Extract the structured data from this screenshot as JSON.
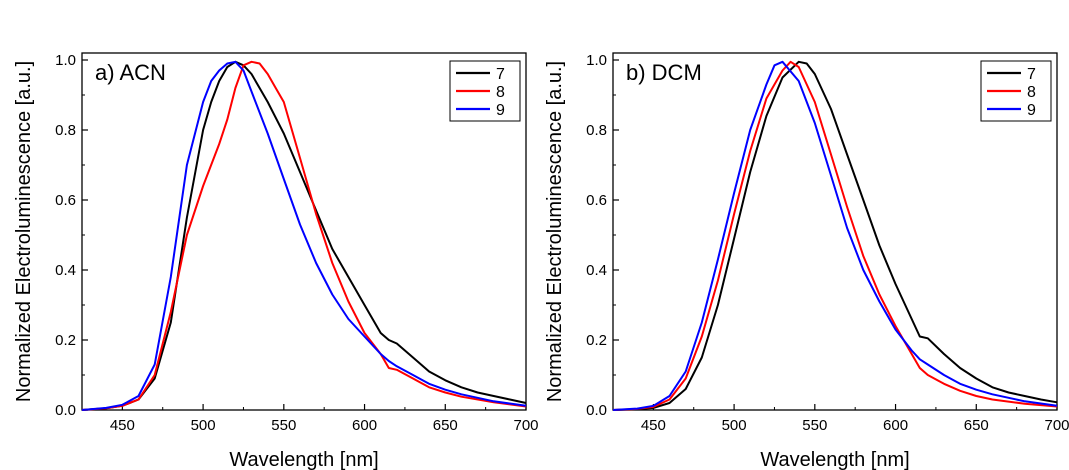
{
  "chart_data": [
    {
      "type": "line",
      "panel_label": "a) ACN",
      "xlabel": "Wavelength [nm]",
      "ylabel": "Normalized Electroluminescence [a.u.]",
      "xlim": [
        425,
        700
      ],
      "ylim": [
        0,
        1.02
      ],
      "xticks": [
        "450",
        "500",
        "550",
        "600",
        "650",
        "700"
      ],
      "yticks": [
        "0.0",
        "0.2",
        "0.4",
        "0.6",
        "0.8",
        "1.0"
      ],
      "grid": false,
      "legend_position": "top-right",
      "series": [
        {
          "name": "7",
          "color": "#000000",
          "x": [
            425,
            440,
            450,
            460,
            470,
            480,
            490,
            500,
            505,
            510,
            515,
            520,
            525,
            530,
            540,
            550,
            560,
            570,
            580,
            590,
            600,
            605,
            610,
            615,
            620,
            630,
            640,
            650,
            660,
            670,
            680,
            690,
            700
          ],
          "y": [
            0.0,
            0.005,
            0.012,
            0.03,
            0.09,
            0.25,
            0.55,
            0.8,
            0.88,
            0.94,
            0.98,
            0.995,
            0.985,
            0.96,
            0.88,
            0.79,
            0.68,
            0.57,
            0.46,
            0.38,
            0.3,
            0.26,
            0.22,
            0.2,
            0.19,
            0.15,
            0.11,
            0.085,
            0.065,
            0.05,
            0.04,
            0.03,
            0.02
          ]
        },
        {
          "name": "8",
          "color": "#ff0000",
          "x": [
            425,
            440,
            450,
            460,
            470,
            480,
            490,
            500,
            510,
            515,
            520,
            525,
            530,
            535,
            540,
            545,
            550,
            560,
            570,
            580,
            590,
            600,
            610,
            615,
            620,
            630,
            640,
            650,
            660,
            680,
            700
          ],
          "y": [
            0.0,
            0.005,
            0.012,
            0.03,
            0.1,
            0.28,
            0.5,
            0.64,
            0.76,
            0.83,
            0.92,
            0.985,
            0.995,
            0.99,
            0.96,
            0.92,
            0.88,
            0.72,
            0.56,
            0.42,
            0.31,
            0.22,
            0.16,
            0.12,
            0.115,
            0.09,
            0.065,
            0.05,
            0.038,
            0.022,
            0.01
          ]
        },
        {
          "name": "9",
          "color": "#0000ff",
          "x": [
            425,
            440,
            450,
            460,
            470,
            480,
            490,
            500,
            505,
            510,
            515,
            520,
            525,
            530,
            540,
            550,
            560,
            570,
            580,
            590,
            600,
            610,
            615,
            620,
            630,
            640,
            650,
            660,
            680,
            700
          ],
          "y": [
            0.0,
            0.006,
            0.015,
            0.04,
            0.13,
            0.38,
            0.7,
            0.88,
            0.94,
            0.97,
            0.99,
            0.995,
            0.97,
            0.91,
            0.79,
            0.66,
            0.53,
            0.42,
            0.33,
            0.26,
            0.21,
            0.16,
            0.14,
            0.125,
            0.1,
            0.075,
            0.058,
            0.045,
            0.025,
            0.012
          ]
        }
      ]
    },
    {
      "type": "line",
      "panel_label": "b) DCM",
      "xlabel": "Wavelength [nm]",
      "ylabel": "Normalized Electroluminescence [a.u.]",
      "xlim": [
        425,
        700
      ],
      "ylim": [
        0,
        1.02
      ],
      "xticks": [
        "450",
        "500",
        "550",
        "600",
        "650",
        "700"
      ],
      "yticks": [
        "0.0",
        "0.2",
        "0.4",
        "0.6",
        "0.8",
        "1.0"
      ],
      "grid": false,
      "legend_position": "top-right",
      "series": [
        {
          "name": "7",
          "color": "#000000",
          "x": [
            425,
            440,
            450,
            460,
            470,
            480,
            490,
            500,
            510,
            520,
            530,
            540,
            545,
            550,
            560,
            570,
            580,
            590,
            600,
            610,
            615,
            620,
            630,
            640,
            650,
            660,
            670,
            680,
            690,
            700
          ],
          "y": [
            0.0,
            0.002,
            0.006,
            0.02,
            0.06,
            0.15,
            0.3,
            0.49,
            0.68,
            0.84,
            0.95,
            0.995,
            0.99,
            0.96,
            0.86,
            0.73,
            0.6,
            0.47,
            0.36,
            0.26,
            0.21,
            0.205,
            0.16,
            0.12,
            0.09,
            0.065,
            0.05,
            0.04,
            0.03,
            0.022
          ]
        },
        {
          "name": "8",
          "color": "#ff0000",
          "x": [
            425,
            440,
            450,
            460,
            470,
            480,
            490,
            500,
            510,
            520,
            530,
            535,
            540,
            550,
            560,
            570,
            580,
            590,
            600,
            610,
            615,
            620,
            630,
            640,
            650,
            660,
            680,
            700
          ],
          "y": [
            0.0,
            0.003,
            0.009,
            0.03,
            0.09,
            0.21,
            0.37,
            0.56,
            0.74,
            0.89,
            0.97,
            0.995,
            0.98,
            0.88,
            0.73,
            0.58,
            0.44,
            0.33,
            0.24,
            0.16,
            0.12,
            0.1,
            0.075,
            0.055,
            0.04,
            0.03,
            0.018,
            0.01
          ]
        },
        {
          "name": "9",
          "color": "#0000ff",
          "x": [
            425,
            440,
            450,
            460,
            470,
            480,
            490,
            500,
            510,
            520,
            525,
            530,
            540,
            550,
            560,
            570,
            580,
            590,
            600,
            610,
            615,
            620,
            630,
            640,
            650,
            660,
            680,
            700
          ],
          "y": [
            0.0,
            0.004,
            0.012,
            0.04,
            0.11,
            0.25,
            0.43,
            0.62,
            0.8,
            0.93,
            0.985,
            0.995,
            0.94,
            0.82,
            0.67,
            0.52,
            0.4,
            0.31,
            0.23,
            0.17,
            0.145,
            0.13,
            0.1,
            0.075,
            0.058,
            0.045,
            0.025,
            0.012
          ]
        }
      ]
    }
  ]
}
